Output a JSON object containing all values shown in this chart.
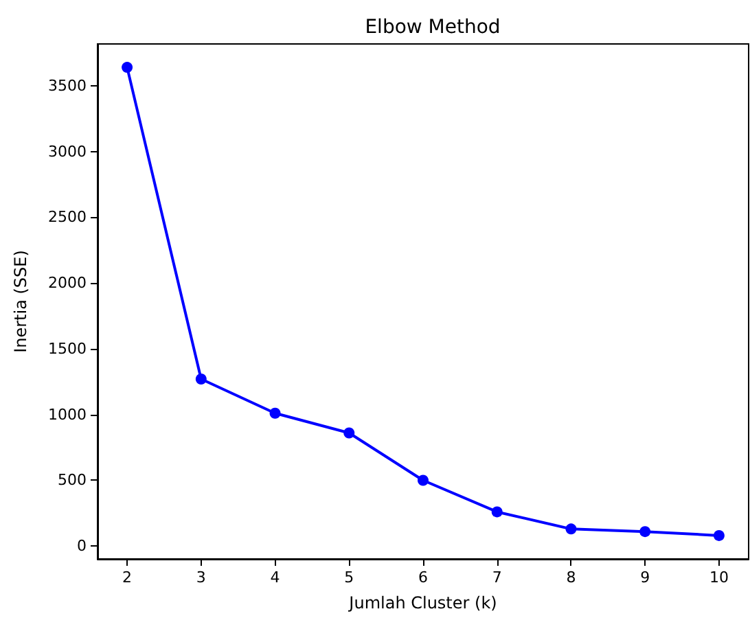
{
  "chart_data": {
    "type": "line",
    "title": "Elbow Method",
    "xlabel": "Jumlah Cluster (k)",
    "ylabel": "Inertia (SSE)",
    "x": [
      2,
      3,
      4,
      5,
      6,
      7,
      8,
      9,
      10
    ],
    "series": [
      {
        "color": "#0000ff",
        "values": [
          3640,
          1270,
          1010,
          860,
          500,
          260,
          130,
          110,
          80
        ]
      }
    ],
    "xlim": [
      1.6,
      10.4
    ],
    "xticks": [
      2,
      3,
      4,
      5,
      6,
      7,
      8,
      9,
      10
    ],
    "ylim": [
      -98,
      3818
    ],
    "yticks": [
      0,
      500,
      1000,
      1500,
      2000,
      2500,
      3000,
      3500
    ],
    "grid": false,
    "marker": "circle",
    "line_style": "solid"
  }
}
